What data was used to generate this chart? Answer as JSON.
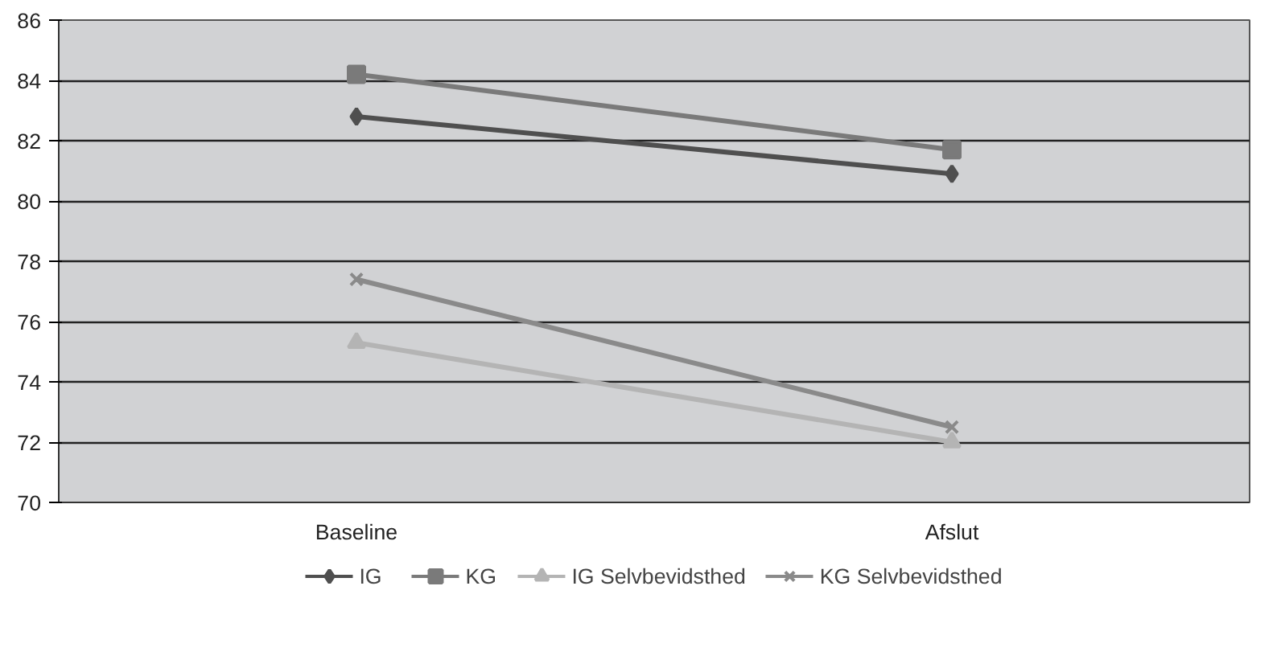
{
  "chart_data": {
    "type": "line",
    "categories": [
      "Baseline",
      "Afslut"
    ],
    "series": [
      {
        "name": "IG",
        "color": "#4f4f4f",
        "marker": "diamond",
        "values": [
          82.8,
          80.9
        ]
      },
      {
        "name": "KG",
        "color": "#7a7a7a",
        "marker": "square",
        "values": [
          84.2,
          81.7
        ]
      },
      {
        "name": "IG Selvbevidsthed",
        "color": "#b4b4b4",
        "marker": "triangle",
        "values": [
          75.3,
          72.0
        ]
      },
      {
        "name": "KG Selvbevidsthed",
        "color": "#8a8a8a",
        "marker": "cross",
        "values": [
          77.4,
          72.5
        ]
      }
    ],
    "ylim": [
      70,
      86
    ],
    "yticks": [
      70,
      72,
      74,
      76,
      78,
      80,
      82,
      84,
      86
    ],
    "grid": "y",
    "legend": "bottom",
    "line_style": "solid"
  }
}
